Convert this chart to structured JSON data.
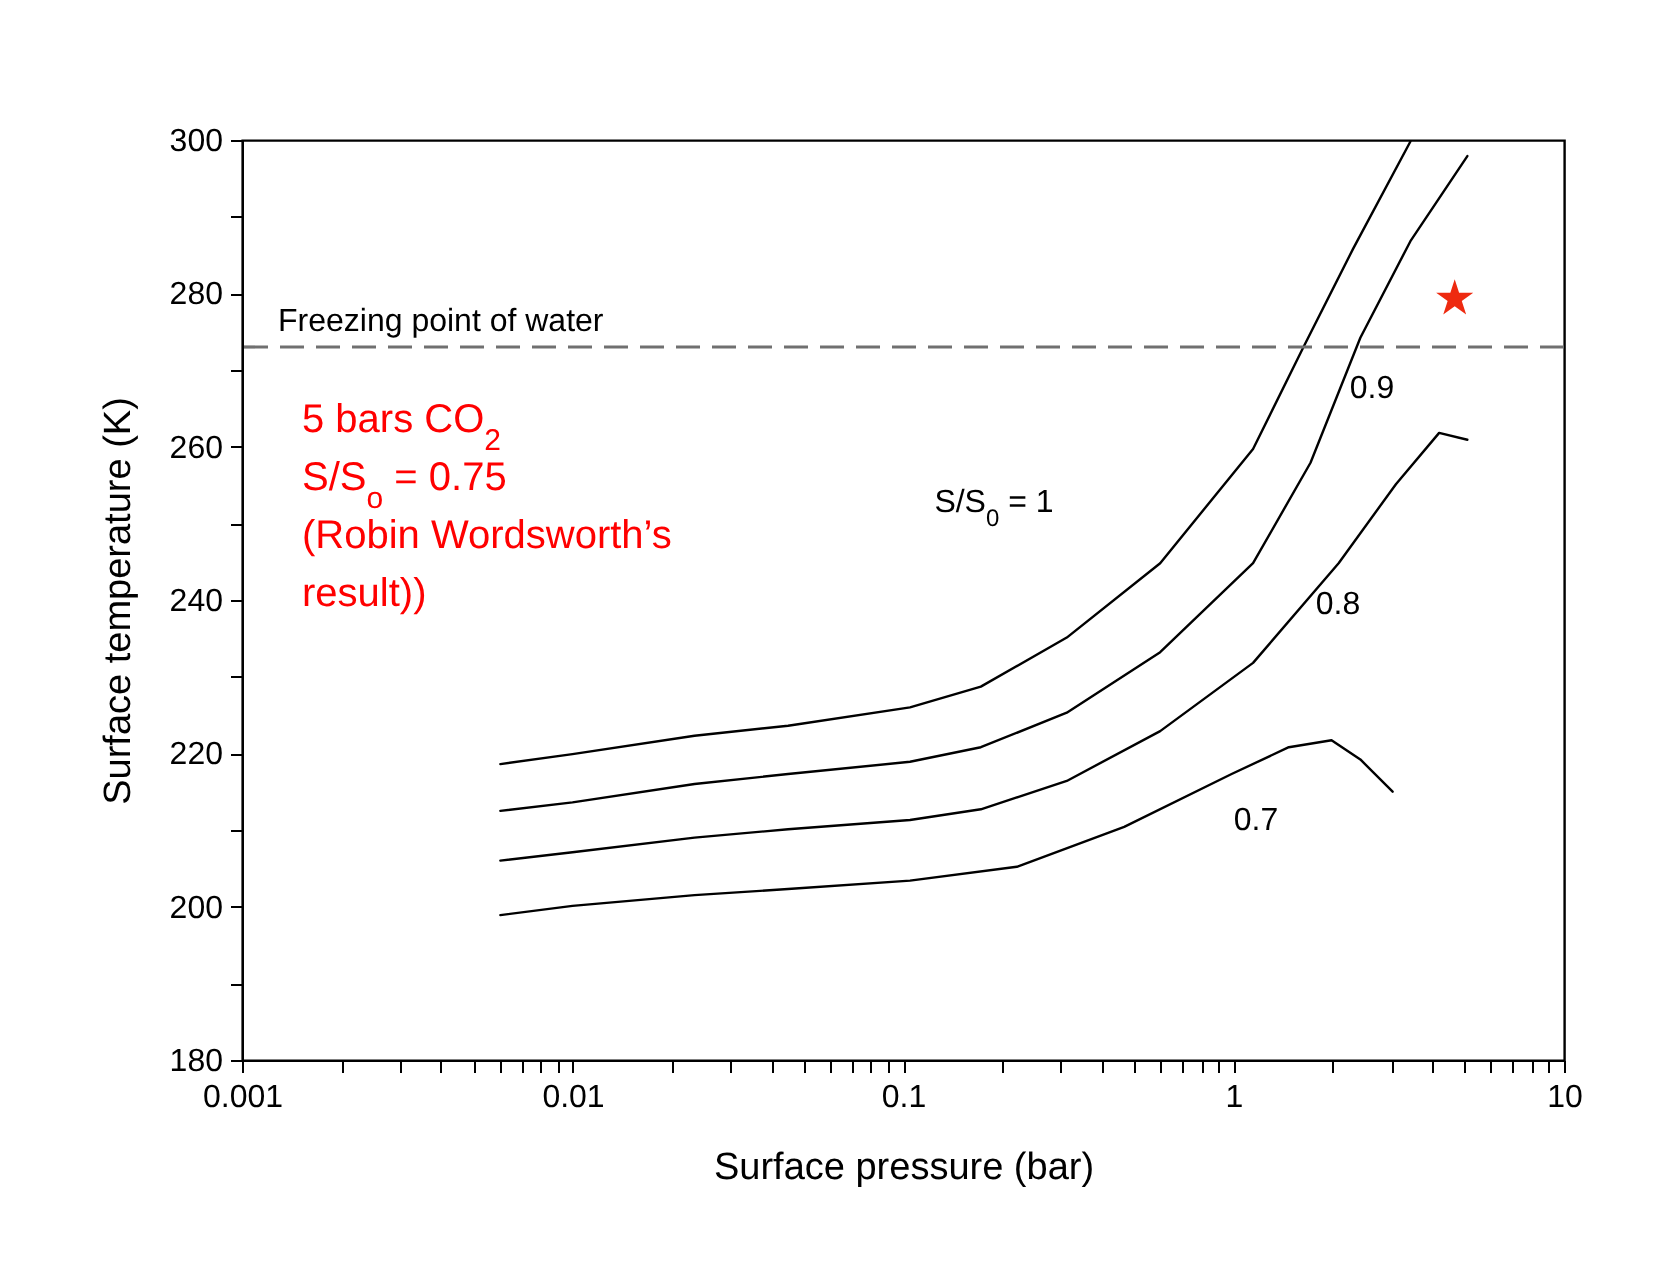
{
  "chart_data": {
    "type": "line",
    "xlabel": "Surface pressure (bar)",
    "ylabel": "Surface temperature (K)",
    "log": "x",
    "grid": false,
    "marker": "none",
    "line_style": "solid",
    "xlim": [
      0.001,
      10
    ],
    "xticks": [
      0.001,
      {
        "value": 0.002,
        "label": null
      },
      {
        "value": 0.003,
        "label": null
      },
      {
        "value": 0.004,
        "label": null
      },
      {
        "value": 0.005,
        "label": null
      },
      {
        "value": 0.006,
        "label": null
      },
      {
        "value": 0.007,
        "label": null
      },
      {
        "value": 0.008,
        "label": null
      },
      {
        "value": 0.009,
        "label": null
      },
      0.01,
      {
        "value": 0.02,
        "label": null
      },
      {
        "value": 0.03,
        "label": null
      },
      {
        "value": 0.04,
        "label": null
      },
      {
        "value": 0.05,
        "label": null
      },
      {
        "value": 0.06,
        "label": null
      },
      {
        "value": 0.07,
        "label": null
      },
      {
        "value": 0.08,
        "label": null
      },
      {
        "value": 0.09,
        "label": null
      },
      0.1,
      {
        "value": 0.2,
        "label": null
      },
      {
        "value": 0.3,
        "label": null
      },
      {
        "value": 0.4,
        "label": null
      },
      {
        "value": 0.5,
        "label": null
      },
      {
        "value": 0.6,
        "label": null
      },
      {
        "value": 0.7,
        "label": null
      },
      {
        "value": 0.8,
        "label": null
      },
      {
        "value": 0.9,
        "label": null
      },
      1,
      {
        "value": 2,
        "label": null
      },
      {
        "value": 3,
        "label": null
      },
      {
        "value": 4,
        "label": null
      },
      {
        "value": 5,
        "label": null
      },
      {
        "value": 6,
        "label": null
      },
      {
        "value": 7,
        "label": null
      },
      {
        "value": 8,
        "label": null
      },
      {
        "value": 9,
        "label": null
      },
      10
    ],
    "ylim": [
      180,
      300
    ],
    "yticks": [
      180,
      {
        "value": 190,
        "label": null
      },
      200,
      {
        "value": 210,
        "label": null
      },
      220,
      {
        "value": 230,
        "label": null
      },
      240,
      {
        "value": 250,
        "label": null
      },
      260,
      {
        "value": 270,
        "label": null
      },
      280,
      {
        "value": 290,
        "label": null
      },
      300
    ],
    "series": [
      {
        "name": "S/S$_{0}$ = 1",
        "color": "#000000",
        "x": [
          0.00605,
          0.01,
          0.0234,
          0.0449,
          0.105,
          0.172,
          0.313,
          0.6,
          1.146,
          1.62,
          2.3,
          3.43
        ],
        "values": [
          218.6,
          219.9,
          222.3,
          223.6,
          226,
          228.7,
          235.1,
          244.8,
          259.7,
          272.8,
          285.8,
          299.8
        ]
      },
      {
        "name": "0.9",
        "color": "#000000",
        "x": [
          0.00605,
          0.01,
          0.0234,
          0.0449,
          0.105,
          0.172,
          0.313,
          0.6,
          1.146,
          1.71,
          2.42,
          3.43,
          5.1
        ],
        "values": [
          212.5,
          213.6,
          216,
          217.3,
          218.9,
          220.8,
          225.3,
          233.2,
          244.8,
          257.9,
          274.2,
          286.8,
          297.9
        ]
      },
      {
        "name": "0.8",
        "color": "#000000",
        "x": [
          0.00605,
          0.01,
          0.0234,
          0.0449,
          0.105,
          0.172,
          0.313,
          0.6,
          1.146,
          2.08,
          3.1,
          4.19,
          5.1
        ],
        "values": [
          206,
          207.1,
          209,
          210.1,
          211.3,
          212.7,
          216.4,
          222.9,
          231.8,
          244.8,
          255.1,
          261.8,
          260.9
        ]
      },
      {
        "name": "0.7",
        "color": "#000000",
        "x": [
          0.00605,
          0.01,
          0.0234,
          0.0449,
          0.105,
          0.221,
          0.467,
          0.987,
          1.47,
          1.98,
          2.42,
          3.03
        ],
        "values": [
          198.9,
          200.1,
          201.5,
          202.3,
          203.4,
          205.2,
          210.4,
          217.3,
          220.8,
          221.7,
          219.2,
          215
        ]
      },
      {
        "type": "scatter",
        "marker": "star",
        "color": "#ee2a10",
        "x": [
          4.67
        ],
        "values": [
          279.3
        ]
      }
    ],
    "ref_lines": [
      {
        "axis": "y",
        "value": 273,
        "label": "Freezing point of water",
        "color": "#707070",
        "line_style": "dashed"
      }
    ],
    "annotations": [
      "5 bars CO$_{2}$\nS/S$_{o}$ = 0.75\n(Robin Wordsworth’s\nresult))"
    ]
  }
}
